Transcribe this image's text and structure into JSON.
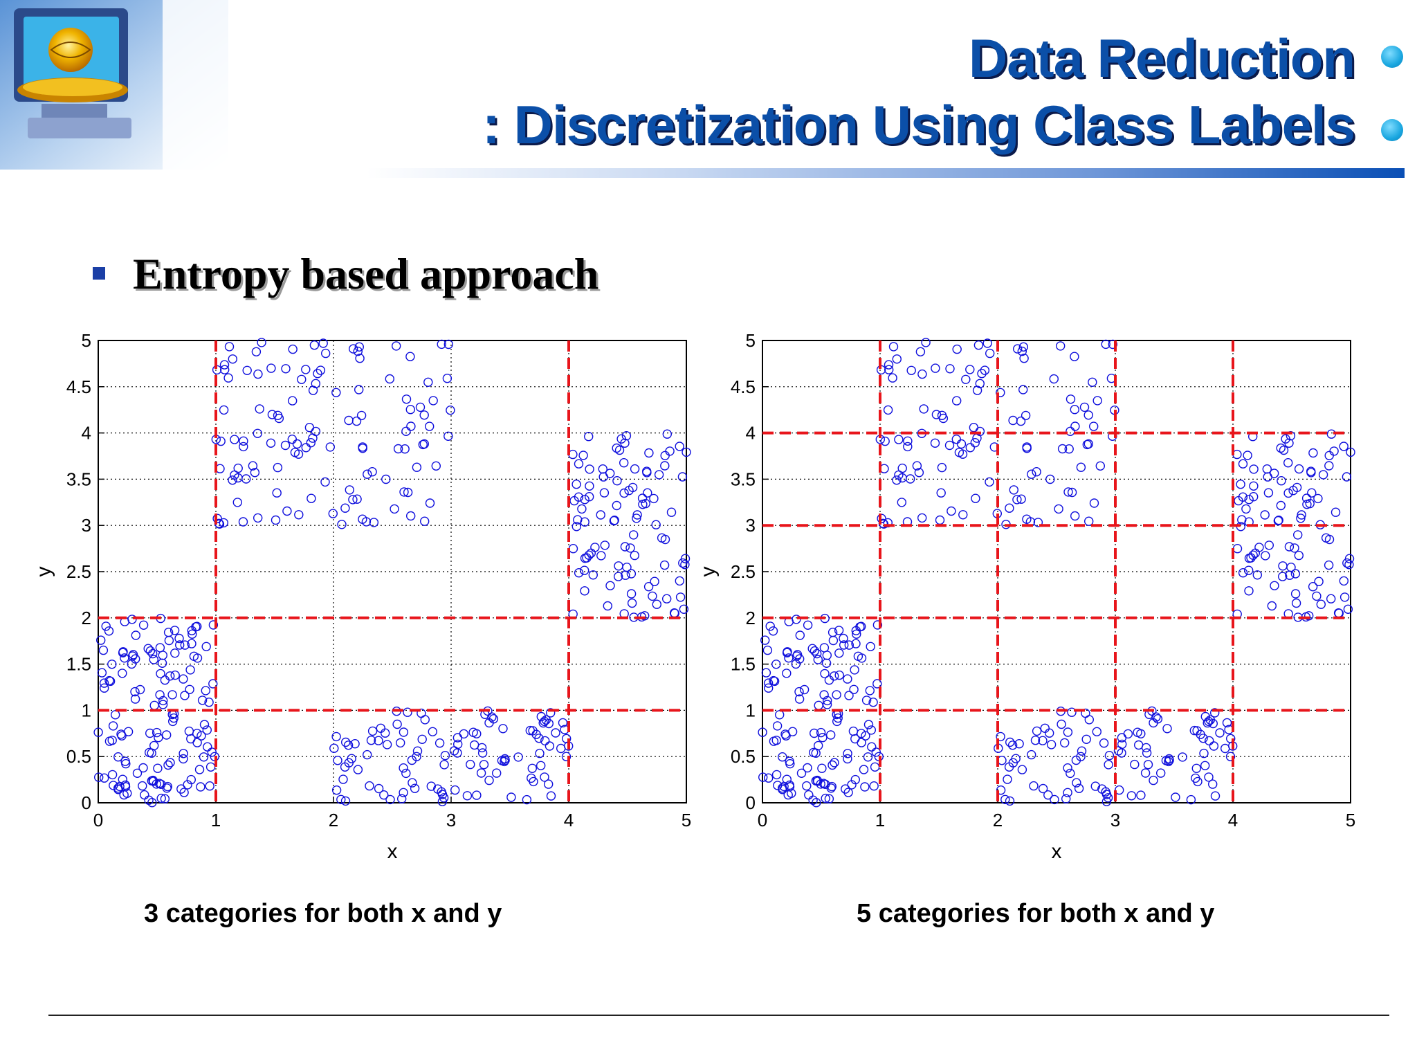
{
  "slide": {
    "title_line1": "Data Reduction",
    "title_line2": ": Discretization Using Class Labels",
    "bullet": "Entropy based approach",
    "accent_color": "#0b4fa8",
    "bullet_icon": "square-bullet-icon",
    "logo_icon": "computer-globe-logo-icon"
  },
  "chart_data": [
    {
      "type": "scatter",
      "caption": "3 categories for both x and y",
      "xlabel": "x",
      "ylabel": "y",
      "xlim": [
        0,
        5
      ],
      "ylim": [
        0,
        5
      ],
      "xticks": [
        0,
        1,
        2,
        3,
        4,
        5
      ],
      "xtick_labels": [
        "0",
        "1",
        "2",
        "3",
        "4",
        "5"
      ],
      "yticks": [
        0,
        0.5,
        1,
        1.5,
        2,
        2.5,
        3,
        3.5,
        4,
        4.5,
        5
      ],
      "ytick_labels": [
        "0",
        "0.5",
        "1",
        "1.5",
        "2",
        "2.5",
        "3",
        "3.5",
        "4",
        "4.5",
        "5"
      ],
      "grid": "dotted",
      "marker": "circle",
      "marker_color": "#1010dd",
      "split_color": "#e8151b",
      "splits_x": [
        1,
        4
      ],
      "splits_y": [
        1,
        2
      ],
      "clusters": [
        {
          "x": [
            0,
            1
          ],
          "y": [
            0,
            2
          ],
          "n": 140
        },
        {
          "x": [
            1,
            3
          ],
          "y": [
            3,
            5
          ],
          "n": 120
        },
        {
          "x": [
            2,
            4
          ],
          "y": [
            0,
            1
          ],
          "n": 110
        },
        {
          "x": [
            4,
            5
          ],
          "y": [
            2,
            4
          ],
          "n": 100
        }
      ]
    },
    {
      "type": "scatter",
      "caption": "5 categories for both x and y",
      "xlabel": "x",
      "ylabel": "y",
      "xlim": [
        0,
        5
      ],
      "ylim": [
        0,
        5
      ],
      "xticks": [
        0,
        1,
        2,
        3,
        4,
        5
      ],
      "xtick_labels": [
        "0",
        "1",
        "2",
        "3",
        "4",
        "5"
      ],
      "yticks": [
        0,
        0.5,
        1,
        1.5,
        2,
        2.5,
        3,
        3.5,
        4,
        4.5,
        5
      ],
      "ytick_labels": [
        "0",
        "0.5",
        "1",
        "1.5",
        "2",
        "2.5",
        "3",
        "3.5",
        "4",
        "4.5",
        "5"
      ],
      "grid": "dotted",
      "marker": "circle",
      "marker_color": "#1010dd",
      "split_color": "#e8151b",
      "splits_x": [
        1,
        2,
        3,
        4
      ],
      "splits_y": [
        1,
        2,
        3,
        4
      ],
      "clusters": [
        {
          "x": [
            0,
            1
          ],
          "y": [
            0,
            2
          ],
          "n": 140
        },
        {
          "x": [
            1,
            3
          ],
          "y": [
            3,
            5
          ],
          "n": 120
        },
        {
          "x": [
            2,
            4
          ],
          "y": [
            0,
            1
          ],
          "n": 110
        },
        {
          "x": [
            4,
            5
          ],
          "y": [
            2,
            4
          ],
          "n": 100
        }
      ]
    }
  ]
}
